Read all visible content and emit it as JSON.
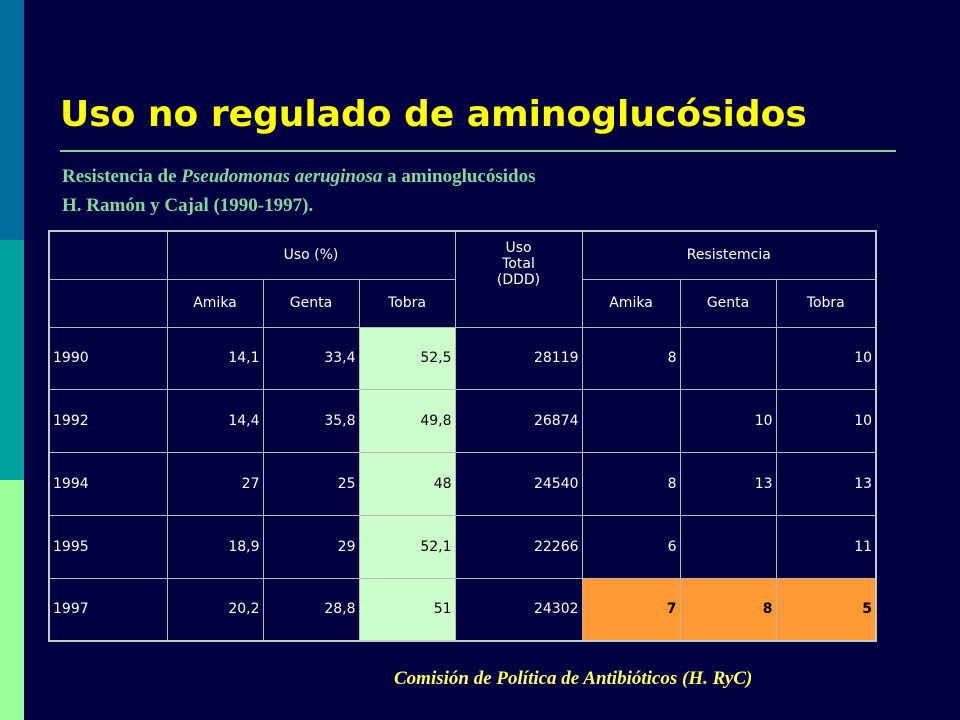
{
  "title": "Uso no regulado de aminoglucósidos",
  "subtitle": {
    "line1_prefix": "Resistencia de ",
    "line1_italic": "Pseudomonas aeruginosa",
    "line1_suffix": " a aminoglucósidos",
    "line2": "H. Ramón y Cajal (1990-1997)."
  },
  "table": {
    "group_uso": "Uso (%)",
    "uso_total_lines": [
      "Uso",
      "Total",
      "(DDD)"
    ],
    "group_resistencia": "Resistemcia",
    "sub_headers": [
      "Amika",
      "Genta",
      "Tobra"
    ],
    "rows": [
      {
        "year": "1990",
        "uso_amika": "14,1",
        "uso_genta": "33,4",
        "uso_tobra": "52,5",
        "total_ddd": "28119",
        "res_amika": "8",
        "res_genta": "",
        "res_tobra": "10"
      },
      {
        "year": "1992",
        "uso_amika": "14,4",
        "uso_genta": "35,8",
        "uso_tobra": "49,8",
        "total_ddd": "26874",
        "res_amika": "",
        "res_genta": "10",
        "res_tobra": "10"
      },
      {
        "year": "1994",
        "uso_amika": "27",
        "uso_genta": "25",
        "uso_tobra": "48",
        "total_ddd": "24540",
        "res_amika": "8",
        "res_genta": "13",
        "res_tobra": "13"
      },
      {
        "year": "1995",
        "uso_amika": "18,9",
        "uso_genta": "29",
        "uso_tobra": "52,1",
        "total_ddd": "22266",
        "res_amika": "6",
        "res_genta": "",
        "res_tobra": "11"
      },
      {
        "year": "1997",
        "uso_amika": "20,2",
        "uso_genta": "28,8",
        "uso_tobra": "51",
        "total_ddd": "24302",
        "res_amika": "7",
        "res_genta": "8",
        "res_tobra": "5"
      }
    ]
  },
  "footer": "Comisión de Política de Antibióticos (H. RyC)",
  "colors": {
    "background": "#000040",
    "title": "#ffff00",
    "subtitle": "#7fd9a0",
    "tobra_highlight": "#ccffcc",
    "resistance_1997_highlight": "#ff9933",
    "footer": "#ffff66"
  }
}
